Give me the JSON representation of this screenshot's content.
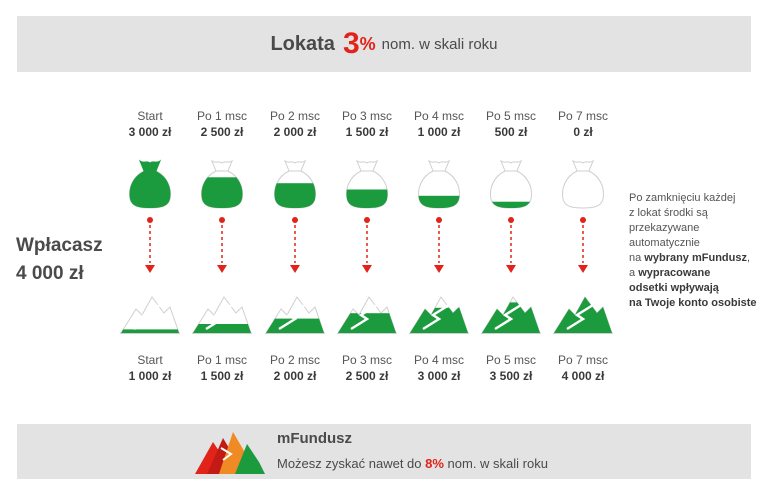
{
  "header": {
    "title_word": "Lokata",
    "rate_number": "3",
    "rate_percent": "%",
    "rate_suffix": "nom. w skali roku"
  },
  "left_label": {
    "line1": "Wpłacasz",
    "line2": "4 000 zł"
  },
  "deposits": [
    {
      "period": "Start",
      "amount": "3 000 zł",
      "fill": 1.0
    },
    {
      "period": "Po 1 msc",
      "amount": "2 500 zł",
      "fill": 0.83
    },
    {
      "period": "Po 2 msc",
      "amount": "2 000 zł",
      "fill": 0.67
    },
    {
      "period": "Po 3 msc",
      "amount": "1 500 zł",
      "fill": 0.5
    },
    {
      "period": "Po 4 msc",
      "amount": "1 000 zł",
      "fill": 0.33
    },
    {
      "period": "Po 5 msc",
      "amount": "500 zł",
      "fill": 0.17
    },
    {
      "period": "Po 7 msc",
      "amount": "0 zł",
      "fill": 0.0
    }
  ],
  "funds": [
    {
      "period": "Start",
      "amount": "1 000 zł",
      "fill": 0.1
    },
    {
      "period": "Po 1 msc",
      "amount": "1 500 zł",
      "fill": 0.25
    },
    {
      "period": "Po 2 msc",
      "amount": "2 000 zł",
      "fill": 0.4
    },
    {
      "period": "Po 3 msc",
      "amount": "2 500 zł",
      "fill": 0.55
    },
    {
      "period": "Po 4 msc",
      "amount": "3 000 zł",
      "fill": 0.7
    },
    {
      "period": "Po 5 msc",
      "amount": "3 500 zł",
      "fill": 0.85
    },
    {
      "period": "Po 7 msc",
      "amount": "4 000 zł",
      "fill": 1.0
    }
  ],
  "side_note": {
    "p1": "Po zamknięciu każdej",
    "p2": "z lokat środki są",
    "p3": "przekazywane",
    "p4": "automatycznie",
    "p5_pre": "na ",
    "p5_bold": "wybrany mFundusz",
    "p5_post": ",",
    "p6_pre": "a ",
    "p6_bold": "wypracowane",
    "p7_bold": "odsetki wpływają",
    "p8_bold": "na Twoje konto osobiste"
  },
  "footer": {
    "title": "mFundusz",
    "sub_pre": "Możesz zyskać nawet do ",
    "sub_rate": "8%",
    "sub_post": " nom. w skali roku"
  },
  "colors": {
    "green": "#1b9a3e",
    "red": "#e2231a",
    "banner_bg": "#e3e3e3",
    "text": "#4a4a4a"
  }
}
